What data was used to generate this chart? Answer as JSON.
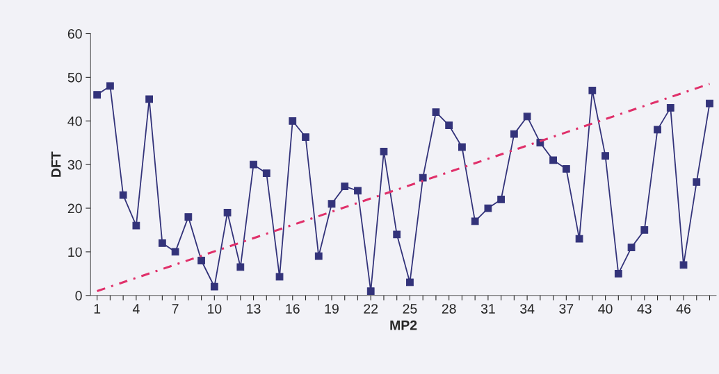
{
  "chart_data": {
    "type": "line",
    "xlabel": "MP2",
    "ylabel": "DFT",
    "x": [
      1,
      2,
      3,
      4,
      5,
      6,
      7,
      8,
      9,
      10,
      11,
      12,
      13,
      14,
      15,
      16,
      17,
      18,
      19,
      20,
      21,
      22,
      23,
      24,
      25,
      26,
      27,
      28,
      29,
      30,
      31,
      32,
      33,
      34,
      35,
      36,
      37,
      38,
      39,
      40,
      41,
      42,
      43,
      44,
      45,
      46,
      47,
      48
    ],
    "series": [
      {
        "color": "#33337a",
        "marker": "square",
        "line_style": "solid",
        "values": [
          46,
          48,
          23,
          16,
          45,
          12,
          10,
          18,
          8,
          2,
          19,
          6.5,
          30,
          28,
          4.3,
          40,
          36.3,
          9,
          21,
          25,
          24,
          1,
          33,
          14,
          3,
          27,
          42,
          39,
          34,
          17,
          20,
          22,
          37,
          41,
          35,
          31,
          29,
          13,
          47,
          32,
          5,
          11,
          15,
          38,
          43,
          7,
          26,
          44
        ]
      },
      {
        "type": "line",
        "color": "#e0306a",
        "marker": "none",
        "line_style": "dashed",
        "x": [
          1,
          48
        ],
        "values": [
          1,
          48.5
        ]
      }
    ],
    "xlim": [
      0.5,
      48.5
    ],
    "xticks": [
      1,
      {
        "value": 2,
        "label": null
      },
      {
        "value": 3,
        "label": null
      },
      4,
      {
        "value": 5,
        "label": null
      },
      {
        "value": 6,
        "label": null
      },
      7,
      {
        "value": 8,
        "label": null
      },
      {
        "value": 9,
        "label": null
      },
      10,
      {
        "value": 11,
        "label": null
      },
      {
        "value": 12,
        "label": null
      },
      13,
      {
        "value": 14,
        "label": null
      },
      {
        "value": 15,
        "label": null
      },
      16,
      {
        "value": 17,
        "label": null
      },
      {
        "value": 18,
        "label": null
      },
      19,
      {
        "value": 20,
        "label": null
      },
      {
        "value": 21,
        "label": null
      },
      22,
      {
        "value": 23,
        "label": null
      },
      {
        "value": 24,
        "label": null
      },
      25,
      {
        "value": 26,
        "label": null
      },
      {
        "value": 27,
        "label": null
      },
      28,
      {
        "value": 29,
        "label": null
      },
      {
        "value": 30,
        "label": null
      },
      31,
      {
        "value": 32,
        "label": null
      },
      {
        "value": 33,
        "label": null
      },
      34,
      {
        "value": 35,
        "label": null
      },
      {
        "value": 36,
        "label": null
      },
      37,
      {
        "value": 38,
        "label": null
      },
      {
        "value": 39,
        "label": null
      },
      40,
      {
        "value": 41,
        "label": null
      },
      {
        "value": 42,
        "label": null
      },
      43,
      {
        "value": 44,
        "label": null
      },
      {
        "value": 45,
        "label": null
      },
      46,
      {
        "value": 47,
        "label": null
      },
      {
        "value": 48,
        "label": null
      }
    ],
    "ylim": [
      0,
      60
    ],
    "yticks": [
      0,
      10,
      20,
      30,
      40,
      50,
      60
    ],
    "grid": false,
    "legend": false
  }
}
